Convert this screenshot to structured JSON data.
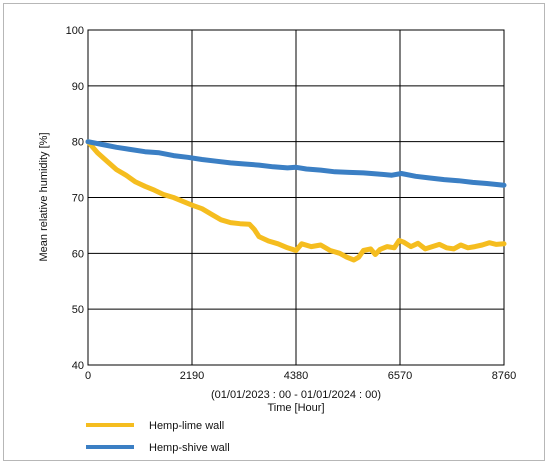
{
  "chart_data": {
    "type": "line",
    "xlabel": "Time  [Hour]",
    "xsublabel": "(01/01/2023 : 00 - 01/01/2024 : 00)",
    "ylabel": "Mean relative humidity [%]",
    "xlim": [
      0,
      8760
    ],
    "ylim": [
      40,
      100
    ],
    "xticks": [
      0,
      2190,
      4380,
      6570,
      8760
    ],
    "yticks": [
      40,
      50,
      60,
      70,
      80,
      90,
      100
    ],
    "grid": true,
    "legend_position": "bottom-left",
    "series": [
      {
        "name": "Hemp-lime wall",
        "color": "#f5bd1f",
        "x": [
          0,
          200,
          400,
          600,
          800,
          1000,
          1200,
          1400,
          1600,
          1800,
          2000,
          2200,
          2400,
          2600,
          2800,
          3000,
          3200,
          3400,
          3500,
          3600,
          3800,
          4000,
          4200,
          4380,
          4500,
          4700,
          4900,
          5100,
          5300,
          5450,
          5600,
          5700,
          5800,
          5950,
          6050,
          6150,
          6300,
          6450,
          6550,
          6650,
          6800,
          6950,
          7100,
          7250,
          7400,
          7550,
          7700,
          7850,
          8000,
          8150,
          8300,
          8450,
          8600,
          8760
        ],
        "y": [
          80.0,
          78.0,
          76.5,
          75.0,
          74.0,
          72.8,
          72.0,
          71.3,
          70.5,
          70.0,
          69.3,
          68.6,
          68.0,
          67.0,
          66.0,
          65.5,
          65.3,
          65.2,
          64.3,
          63.0,
          62.2,
          61.7,
          61.0,
          60.5,
          61.7,
          61.2,
          61.5,
          60.5,
          60.0,
          59.3,
          58.8,
          59.3,
          60.5,
          60.8,
          59.8,
          60.7,
          61.2,
          61.0,
          62.3,
          62.0,
          61.2,
          61.8,
          60.8,
          61.2,
          61.6,
          61.0,
          60.8,
          61.5,
          61.0,
          61.2,
          61.5,
          61.9,
          61.6,
          61.7
        ]
      },
      {
        "name": "Hemp-shive wall",
        "color": "#3b7fc4",
        "x": [
          0,
          300,
          600,
          900,
          1200,
          1500,
          1800,
          2100,
          2400,
          2700,
          3000,
          3300,
          3600,
          3900,
          4200,
          4380,
          4600,
          4900,
          5200,
          5500,
          5800,
          6100,
          6400,
          6600,
          6900,
          7200,
          7500,
          7800,
          8100,
          8400,
          8760
        ],
        "y": [
          80.0,
          79.5,
          79.0,
          78.6,
          78.2,
          78.0,
          77.5,
          77.2,
          76.8,
          76.5,
          76.2,
          76.0,
          75.8,
          75.5,
          75.3,
          75.4,
          75.1,
          74.9,
          74.6,
          74.5,
          74.4,
          74.2,
          74.0,
          74.3,
          73.8,
          73.5,
          73.2,
          73.0,
          72.7,
          72.5,
          72.2
        ]
      }
    ]
  }
}
